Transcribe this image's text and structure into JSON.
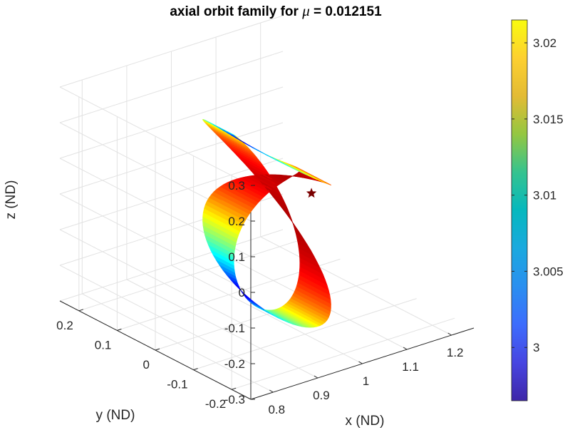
{
  "chart_data": {
    "type": "surface3d",
    "title_prefix": "axial orbit family for ",
    "title_symbol": "μ",
    "title_suffix": " = 0.012151",
    "xlabel": "x (ND)",
    "ylabel": "y (ND)",
    "zlabel": "z (ND)",
    "xlim": [
      0.75,
      1.25
    ],
    "ylim": [
      -0.25,
      0.25
    ],
    "zlim": [
      -0.3,
      0.3
    ],
    "xticks": [
      "0.8",
      "0.9",
      "1",
      "1.1",
      "1.2"
    ],
    "yticks": [
      "-0.2",
      "-0.1",
      "0",
      "0.1",
      "0.2"
    ],
    "zticks": [
      "-0.3",
      "-0.2",
      "-0.1",
      "0",
      "0.1",
      "0.2",
      "0.3"
    ],
    "grid": true,
    "colorbar": {
      "colormap": "parula",
      "range": [
        2.9965,
        3.0215
      ],
      "ticks": [
        "3",
        "3.005",
        "3.01",
        "3.015",
        "3.02"
      ]
    },
    "surface_colormap": "jet",
    "marker": {
      "symbol": "star",
      "color": "#7a0000",
      "x": 1.1,
      "y": 0.0,
      "z": 0.0
    },
    "surface": {
      "center_x": 1.0,
      "center_y": 0.0,
      "x_semi_amplitude": 0.07,
      "y_semi_amplitude": [
        0.1,
        0.2
      ],
      "z_semi_amplitude": 0.22
    }
  }
}
